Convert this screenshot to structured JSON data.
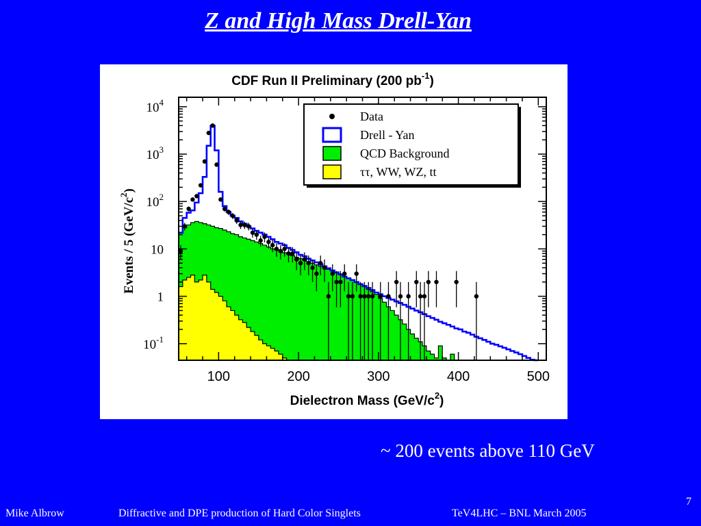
{
  "slide": {
    "title": "Z and High Mass Drell-Yan",
    "caption": "~ 200 events above 110 GeV",
    "page_number": "7",
    "footer": {
      "author": "Mike Albrow",
      "talk": "Diffractive and DPE production of Hard Color Singlets",
      "event": "TeV4LHC – BNL   March 2005"
    }
  },
  "colors": {
    "background": "#0000ff",
    "drell_yan": "#0000ff",
    "qcd": "#00ee00",
    "ewk": "#ffff00",
    "data": "#000000"
  },
  "chart_data": {
    "type": "histogram",
    "title": "CDF Run II Preliminary (200 pb",
    "title_superscript": "-1",
    "title_suffix": ")",
    "xlabel": "Dielectron Mass (GeV/c",
    "xlabel_superscript": "2",
    "xlabel_suffix": ")",
    "ylabel": "Events / 5 (GeV/c",
    "ylabel_superscript": "2",
    "ylabel_suffix": ")",
    "xlim": [
      50,
      510
    ],
    "ylim_log10": [
      -1.35,
      4.2
    ],
    "log_y": true,
    "x_ticks": [
      100,
      200,
      300,
      400,
      500
    ],
    "y_ticks": [
      {
        "value": 10000,
        "base": "10",
        "exp": "4"
      },
      {
        "value": 1000,
        "base": "10",
        "exp": "3"
      },
      {
        "value": 100,
        "base": "10",
        "exp": "2"
      },
      {
        "value": 10,
        "base": "10",
        "exp": ""
      },
      {
        "value": 1,
        "base": "1",
        "exp": ""
      },
      {
        "value": 0.1,
        "base": "10",
        "exp": "-1"
      }
    ],
    "legend": {
      "placement": "top-right",
      "entries": [
        {
          "label": "Data",
          "kind": "marker"
        },
        {
          "label": "Drell - Yan",
          "kind": "outline"
        },
        {
          "label": "QCD Background",
          "kind": "green"
        },
        {
          "label": "ττ, WW, WZ, tt",
          "kind": "yellow"
        }
      ]
    },
    "bin_width": 5,
    "drell_yan": [
      [
        50,
        22
      ],
      [
        55,
        45
      ],
      [
        60,
        58
      ],
      [
        65,
        65
      ],
      [
        70,
        95
      ],
      [
        75,
        150
      ],
      [
        80,
        330
      ],
      [
        85,
        1500
      ],
      [
        90,
        4000
      ],
      [
        95,
        1200
      ],
      [
        100,
        160
      ],
      [
        105,
        80
      ],
      [
        110,
        60
      ],
      [
        115,
        50
      ],
      [
        120,
        45
      ],
      [
        125,
        38
      ],
      [
        130,
        34
      ],
      [
        135,
        30
      ],
      [
        140,
        27
      ],
      [
        145,
        24
      ],
      [
        150,
        22
      ],
      [
        155,
        20
      ],
      [
        160,
        18
      ],
      [
        165,
        16
      ],
      [
        170,
        14
      ],
      [
        175,
        13
      ],
      [
        180,
        12
      ],
      [
        185,
        10.5
      ],
      [
        190,
        9.5
      ],
      [
        195,
        8.5
      ],
      [
        200,
        7.5
      ],
      [
        205,
        7
      ],
      [
        210,
        6.2
      ],
      [
        215,
        5.7
      ],
      [
        220,
        5.2
      ],
      [
        225,
        4.7
      ],
      [
        230,
        4.3
      ],
      [
        235,
        3.9
      ],
      [
        240,
        3.5
      ],
      [
        245,
        3.2
      ],
      [
        250,
        2.9
      ],
      [
        255,
        2.6
      ],
      [
        260,
        2.4
      ],
      [
        265,
        2.2
      ],
      [
        270,
        2.0
      ],
      [
        275,
        1.8
      ],
      [
        280,
        1.65
      ],
      [
        285,
        1.5
      ],
      [
        290,
        1.35
      ],
      [
        295,
        1.2
      ],
      [
        300,
        1.1
      ],
      [
        305,
        1.0
      ],
      [
        310,
        0.92
      ],
      [
        315,
        0.85
      ],
      [
        320,
        0.78
      ],
      [
        325,
        0.72
      ],
      [
        330,
        0.66
      ],
      [
        335,
        0.6
      ],
      [
        340,
        0.55
      ],
      [
        345,
        0.5
      ],
      [
        350,
        0.46
      ],
      [
        355,
        0.42
      ],
      [
        360,
        0.38
      ],
      [
        365,
        0.35
      ],
      [
        370,
        0.32
      ],
      [
        375,
        0.29
      ],
      [
        380,
        0.27
      ],
      [
        385,
        0.25
      ],
      [
        390,
        0.23
      ],
      [
        395,
        0.21
      ],
      [
        400,
        0.2
      ],
      [
        405,
        0.18
      ],
      [
        410,
        0.17
      ],
      [
        415,
        0.155
      ],
      [
        420,
        0.14
      ],
      [
        425,
        0.13
      ],
      [
        430,
        0.12
      ],
      [
        435,
        0.11
      ],
      [
        440,
        0.1
      ],
      [
        445,
        0.095
      ],
      [
        450,
        0.088
      ],
      [
        455,
        0.082
      ],
      [
        460,
        0.076
      ],
      [
        465,
        0.07
      ],
      [
        470,
        0.065
      ],
      [
        475,
        0.06
      ],
      [
        480,
        0.055
      ],
      [
        485,
        0.05
      ],
      [
        490,
        0.046
      ],
      [
        495,
        0.042
      ]
    ],
    "qcd": [
      [
        50,
        22
      ],
      [
        55,
        28
      ],
      [
        60,
        32
      ],
      [
        65,
        36
      ],
      [
        70,
        38
      ],
      [
        75,
        36
      ],
      [
        80,
        34
      ],
      [
        85,
        32
      ],
      [
        90,
        30
      ],
      [
        95,
        28
      ],
      [
        100,
        27
      ],
      [
        105,
        25
      ],
      [
        110,
        23
      ],
      [
        115,
        21
      ],
      [
        120,
        20
      ],
      [
        125,
        18
      ],
      [
        130,
        17
      ],
      [
        135,
        16
      ],
      [
        140,
        15
      ],
      [
        145,
        14
      ],
      [
        150,
        13
      ],
      [
        155,
        12
      ],
      [
        160,
        11
      ],
      [
        165,
        10
      ],
      [
        170,
        9.5
      ],
      [
        175,
        9
      ],
      [
        180,
        8.3
      ],
      [
        185,
        7.8
      ],
      [
        190,
        7.2
      ],
      [
        195,
        6.7
      ],
      [
        200,
        6.2
      ],
      [
        205,
        5.8
      ],
      [
        210,
        5.4
      ],
      [
        215,
        5.0
      ],
      [
        220,
        4.6
      ],
      [
        225,
        4.3
      ],
      [
        230,
        4.0
      ],
      [
        235,
        3.7
      ],
      [
        240,
        3.4
      ],
      [
        245,
        3.1
      ],
      [
        250,
        2.9
      ],
      [
        255,
        2.6
      ],
      [
        260,
        2.4
      ],
      [
        265,
        2.2
      ],
      [
        270,
        2.0
      ],
      [
        275,
        1.8
      ],
      [
        280,
        1.6
      ],
      [
        285,
        1.4
      ],
      [
        290,
        1.25
      ],
      [
        295,
        1.1
      ],
      [
        300,
        0.9
      ],
      [
        305,
        0.75
      ],
      [
        310,
        0.6
      ],
      [
        315,
        0.5
      ],
      [
        320,
        0.4
      ],
      [
        325,
        0.32
      ],
      [
        330,
        0.26
      ],
      [
        335,
        0.2
      ],
      [
        340,
        0.16
      ],
      [
        345,
        0.13
      ],
      [
        350,
        0.11
      ],
      [
        355,
        0.09
      ],
      [
        360,
        0.07
      ],
      [
        365,
        0.06
      ],
      [
        370,
        0.05
      ],
      [
        375,
        0.09
      ],
      [
        380,
        0.05
      ],
      [
        385,
        0.04
      ],
      [
        390,
        0.06
      ],
      [
        395,
        0.04
      ]
    ],
    "ewk": [
      [
        50,
        1.6
      ],
      [
        55,
        2.2
      ],
      [
        60,
        2.5
      ],
      [
        65,
        2.8
      ],
      [
        70,
        2.0
      ],
      [
        75,
        2.2
      ],
      [
        80,
        2.8
      ],
      [
        85,
        2.0
      ],
      [
        90,
        1.4
      ],
      [
        95,
        1.2
      ],
      [
        100,
        1.0
      ],
      [
        105,
        0.8
      ],
      [
        110,
        0.6
      ],
      [
        115,
        0.5
      ],
      [
        120,
        0.4
      ],
      [
        125,
        0.32
      ],
      [
        130,
        0.28
      ],
      [
        135,
        0.22
      ],
      [
        140,
        0.18
      ],
      [
        145,
        0.15
      ],
      [
        150,
        0.12
      ],
      [
        155,
        0.1
      ],
      [
        160,
        0.09
      ],
      [
        165,
        0.08
      ],
      [
        170,
        0.07
      ],
      [
        175,
        0.06
      ],
      [
        180,
        0.05
      ]
    ],
    "data_points": [
      [
        52.5,
        9
      ],
      [
        57.5,
        30
      ],
      [
        62.5,
        70
      ],
      [
        67.5,
        110
      ],
      [
        72.5,
        130
      ],
      [
        77.5,
        220
      ],
      [
        82.5,
        700
      ],
      [
        87.5,
        2800
      ],
      [
        92.5,
        4000
      ],
      [
        97.5,
        600
      ],
      [
        102.5,
        110
      ],
      [
        107.5,
        70
      ],
      [
        112.5,
        60
      ],
      [
        117.5,
        50
      ],
      [
        122.5,
        40
      ],
      [
        127.5,
        32
      ],
      [
        132.5,
        32
      ],
      [
        137.5,
        30
      ],
      [
        142.5,
        22
      ],
      [
        147.5,
        20
      ],
      [
        152.5,
        15
      ],
      [
        157.5,
        18
      ],
      [
        162.5,
        14
      ],
      [
        167.5,
        12
      ],
      [
        172.5,
        10
      ],
      [
        177.5,
        9
      ],
      [
        182.5,
        10
      ],
      [
        187.5,
        8
      ],
      [
        192.5,
        8
      ],
      [
        197.5,
        6
      ],
      [
        202.5,
        5
      ],
      [
        207.5,
        6
      ],
      [
        212.5,
        5
      ],
      [
        217.5,
        4
      ],
      [
        222.5,
        3
      ],
      [
        227.5,
        5
      ],
      [
        232.5,
        4
      ],
      [
        237.5,
        1
      ],
      [
        242.5,
        3
      ],
      [
        247.5,
        2
      ],
      [
        252.5,
        2
      ],
      [
        257.5,
        3
      ],
      [
        262.5,
        1
      ],
      [
        267.5,
        1
      ],
      [
        272.5,
        3
      ],
      [
        277.5,
        1
      ],
      [
        282.5,
        1
      ],
      [
        287.5,
        1
      ],
      [
        292.5,
        1
      ],
      [
        302.5,
        1
      ],
      [
        312.5,
        1
      ],
      [
        322.5,
        2
      ],
      [
        327.5,
        1
      ],
      [
        337.5,
        1
      ],
      [
        347.5,
        2
      ],
      [
        352.5,
        1
      ],
      [
        357.5,
        1
      ],
      [
        362.5,
        2
      ],
      [
        372.5,
        2
      ],
      [
        397.5,
        2
      ],
      [
        422.5,
        1
      ]
    ]
  }
}
